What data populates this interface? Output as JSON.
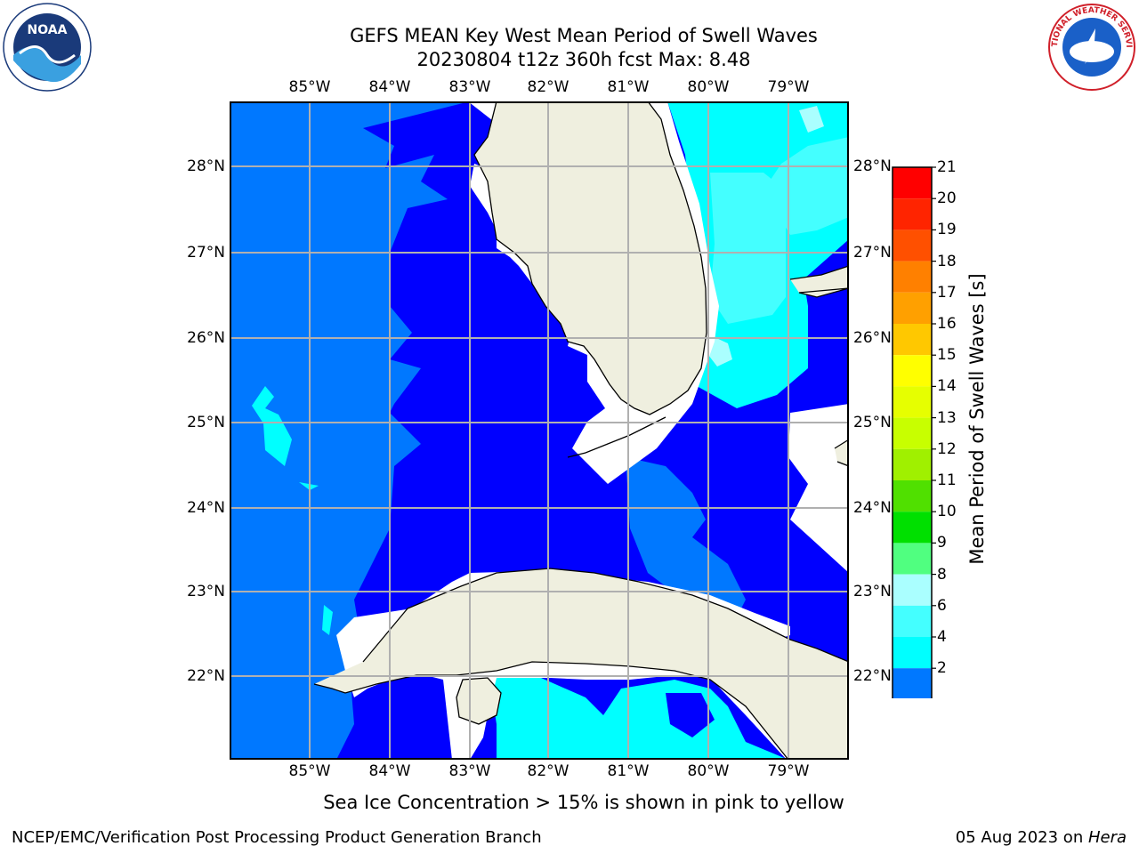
{
  "header": {
    "title_line1": "GEFS MEAN Key West Mean Period of Swell Waves",
    "title_line2": "20230804 t12z 360h fcst   Max: 8.48"
  },
  "logos": {
    "left": "noaa-logo",
    "right": "national-weather-service-logo",
    "left_text": "NOAA",
    "right_text": "NATIONAL WEATHER SERVICE"
  },
  "map": {
    "longitude_labels": [
      "85°W",
      "84°W",
      "83°W",
      "82°W",
      "81°W",
      "80°W",
      "79°W"
    ],
    "latitude_labels": [
      "28°N",
      "27°N",
      "26°N",
      "25°N",
      "24°N",
      "23°N",
      "22°N"
    ],
    "colors": {
      "land": "#efefdf",
      "no_data": "#ffffff",
      "band_2_4": "#0078ff",
      "band_below_2": "#0000ff",
      "band_4_6": "#00ffff",
      "band_6_8": "#44ffff",
      "band_8_9": "#aaffff",
      "gridline": "#b0b0b0",
      "coast": "#000000"
    }
  },
  "colorbar": {
    "label": "Mean Period of Swell Waves [s]",
    "ticks": [
      "21",
      "20",
      "19",
      "18",
      "17",
      "16",
      "15",
      "14",
      "13",
      "12",
      "11",
      "10",
      "9",
      "8",
      "6",
      "4",
      "2"
    ],
    "bands": [
      "#ff0000",
      "#ff2400",
      "#ff5000",
      "#ff8000",
      "#ffa000",
      "#ffc800",
      "#ffff00",
      "#e6ff00",
      "#c8ff00",
      "#a0f000",
      "#50e000",
      "#00e000",
      "#50ff80",
      "#aaffff",
      "#44ffff",
      "#00ffff",
      "#0078ff"
    ],
    "extend_color": "#0000ff"
  },
  "footer": {
    "note": "Sea Ice Concentration > 15% is shown in pink to yellow",
    "credit": "NCEP/EMC/Verification Post Processing Product Generation Branch",
    "date": "05 Aug 2023 on ",
    "machine": "Hera"
  }
}
